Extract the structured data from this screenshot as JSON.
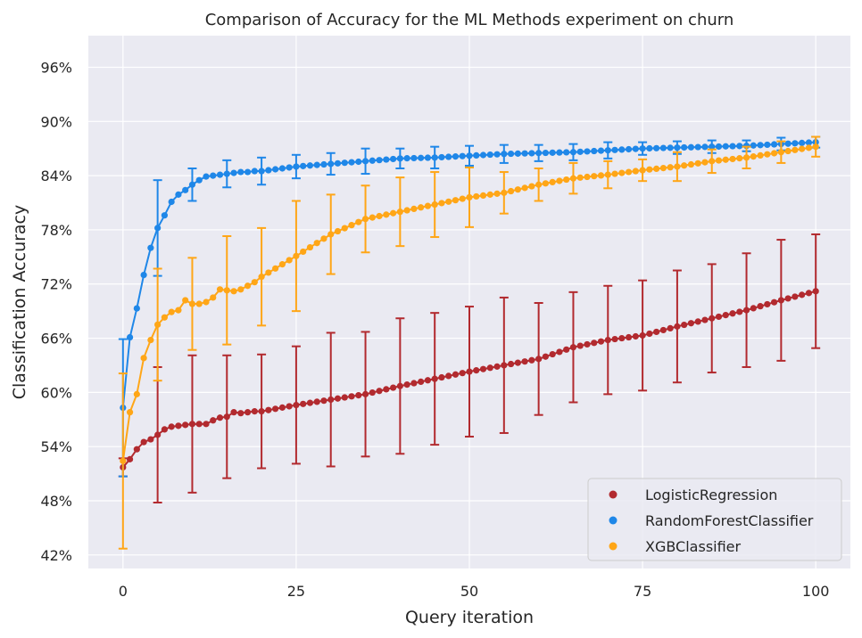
{
  "chart_data": {
    "type": "line",
    "title": "Comparison of Accuracy for the ML Methods experiment on churn",
    "xlabel": "Query iteration",
    "ylabel": "Classification Accuracy",
    "xlim": [
      -5,
      105
    ],
    "ylim": [
      40.5,
      99.5
    ],
    "xticks": [
      0,
      25,
      50,
      75,
      100
    ],
    "yticks": [
      42,
      48,
      54,
      60,
      66,
      72,
      78,
      84,
      90,
      96
    ],
    "ytick_suffix": "%",
    "grid": true,
    "legend_position": "lower right",
    "errorbar_every": 5,
    "background": "#eaeaf2",
    "series": [
      {
        "name": "LogisticRegression",
        "color": "#b22a2f",
        "anchors": [
          [
            0,
            51.7
          ],
          [
            1,
            52.6
          ],
          [
            2,
            53.7
          ],
          [
            3,
            54.5
          ],
          [
            4,
            54.8
          ],
          [
            5,
            55.3
          ],
          [
            6,
            55.9
          ],
          [
            7,
            56.2
          ],
          [
            8,
            56.3
          ],
          [
            9,
            56.4
          ],
          [
            10,
            56.5
          ],
          [
            11,
            56.5
          ],
          [
            12,
            56.5
          ],
          [
            13,
            56.9
          ],
          [
            14,
            57.2
          ],
          [
            15,
            57.3
          ],
          [
            16,
            57.8
          ],
          [
            17,
            57.7
          ],
          [
            18,
            57.8
          ],
          [
            19,
            57.9
          ],
          [
            20,
            57.9
          ],
          [
            25,
            58.6
          ],
          [
            30,
            59.2
          ],
          [
            35,
            59.8
          ],
          [
            40,
            60.7
          ],
          [
            45,
            61.5
          ],
          [
            50,
            62.3
          ],
          [
            55,
            63.0
          ],
          [
            60,
            63.7
          ],
          [
            65,
            65.0
          ],
          [
            70,
            65.8
          ],
          [
            75,
            66.3
          ],
          [
            80,
            67.3
          ],
          [
            85,
            68.2
          ],
          [
            90,
            69.1
          ],
          [
            95,
            70.2
          ],
          [
            100,
            71.2
          ]
        ],
        "errors": [
          [
            0,
            1.0
          ],
          [
            5,
            7.5
          ],
          [
            10,
            7.6
          ],
          [
            15,
            6.8
          ],
          [
            20,
            6.3
          ],
          [
            25,
            6.5
          ],
          [
            30,
            7.4
          ],
          [
            35,
            6.9
          ],
          [
            40,
            7.5
          ],
          [
            45,
            7.3
          ],
          [
            50,
            7.2
          ],
          [
            55,
            7.5
          ],
          [
            60,
            6.2
          ],
          [
            65,
            6.1
          ],
          [
            70,
            6.0
          ],
          [
            75,
            6.1
          ],
          [
            80,
            6.2
          ],
          [
            85,
            6.0
          ],
          [
            90,
            6.3
          ],
          [
            95,
            6.7
          ],
          [
            100,
            6.3
          ]
        ]
      },
      {
        "name": "RandomForestClassifier",
        "color": "#1f87e8",
        "anchors": [
          [
            0,
            58.3
          ],
          [
            1,
            66.1
          ],
          [
            2,
            69.3
          ],
          [
            3,
            73.0
          ],
          [
            4,
            76.0
          ],
          [
            5,
            78.2
          ],
          [
            6,
            79.6
          ],
          [
            7,
            81.1
          ],
          [
            8,
            81.9
          ],
          [
            9,
            82.4
          ],
          [
            10,
            83.0
          ],
          [
            11,
            83.5
          ],
          [
            12,
            83.9
          ],
          [
            13,
            84.0
          ],
          [
            14,
            84.1
          ],
          [
            15,
            84.2
          ],
          [
            16,
            84.3
          ],
          [
            17,
            84.4
          ],
          [
            18,
            84.4
          ],
          [
            19,
            84.5
          ],
          [
            20,
            84.5
          ],
          [
            25,
            85.0
          ],
          [
            30,
            85.3
          ],
          [
            35,
            85.6
          ],
          [
            40,
            85.9
          ],
          [
            45,
            86.0
          ],
          [
            50,
            86.2
          ],
          [
            55,
            86.4
          ],
          [
            60,
            86.5
          ],
          [
            65,
            86.6
          ],
          [
            70,
            86.8
          ],
          [
            75,
            87.0
          ],
          [
            80,
            87.1
          ],
          [
            85,
            87.2
          ],
          [
            90,
            87.3
          ],
          [
            95,
            87.5
          ],
          [
            100,
            87.7
          ]
        ],
        "errors": [
          [
            0,
            7.6
          ],
          [
            5,
            5.3
          ],
          [
            10,
            1.8
          ],
          [
            15,
            1.5
          ],
          [
            20,
            1.5
          ],
          [
            25,
            1.3
          ],
          [
            30,
            1.2
          ],
          [
            35,
            1.4
          ],
          [
            40,
            1.1
          ],
          [
            45,
            1.2
          ],
          [
            50,
            1.1
          ],
          [
            55,
            1.0
          ],
          [
            60,
            0.9
          ],
          [
            65,
            0.9
          ],
          [
            70,
            0.9
          ],
          [
            75,
            0.7
          ],
          [
            80,
            0.7
          ],
          [
            85,
            0.7
          ],
          [
            90,
            0.6
          ],
          [
            95,
            0.7
          ],
          [
            100,
            0.6
          ]
        ]
      },
      {
        "name": "XGBClassifier",
        "color": "#ffa617",
        "anchors": [
          [
            0,
            52.4
          ],
          [
            1,
            57.8
          ],
          [
            2,
            59.8
          ],
          [
            3,
            63.8
          ],
          [
            4,
            65.8
          ],
          [
            5,
            67.5
          ],
          [
            6,
            68.3
          ],
          [
            7,
            68.9
          ],
          [
            8,
            69.1
          ],
          [
            9,
            70.2
          ],
          [
            10,
            69.8
          ],
          [
            11,
            69.8
          ],
          [
            12,
            70.0
          ],
          [
            13,
            70.5
          ],
          [
            14,
            71.4
          ],
          [
            15,
            71.3
          ],
          [
            16,
            71.2
          ],
          [
            17,
            71.4
          ],
          [
            18,
            71.8
          ],
          [
            19,
            72.2
          ],
          [
            20,
            72.8
          ],
          [
            25,
            75.1
          ],
          [
            30,
            77.5
          ],
          [
            35,
            79.2
          ],
          [
            40,
            80.0
          ],
          [
            45,
            80.8
          ],
          [
            50,
            81.6
          ],
          [
            55,
            82.1
          ],
          [
            60,
            83.0
          ],
          [
            65,
            83.7
          ],
          [
            70,
            84.1
          ],
          [
            75,
            84.6
          ],
          [
            80,
            85.0
          ],
          [
            85,
            85.6
          ],
          [
            90,
            86.0
          ],
          [
            95,
            86.6
          ],
          [
            100,
            87.2
          ]
        ],
        "errors": [
          [
            0,
            9.7
          ],
          [
            5,
            6.2
          ],
          [
            10,
            5.1
          ],
          [
            15,
            6.0
          ],
          [
            20,
            5.4
          ],
          [
            25,
            6.1
          ],
          [
            30,
            4.4
          ],
          [
            35,
            3.7
          ],
          [
            40,
            3.8
          ],
          [
            45,
            3.6
          ],
          [
            50,
            3.3
          ],
          [
            55,
            2.3
          ],
          [
            60,
            1.8
          ],
          [
            65,
            1.7
          ],
          [
            70,
            1.5
          ],
          [
            75,
            1.2
          ],
          [
            80,
            1.6
          ],
          [
            85,
            1.3
          ],
          [
            90,
            1.2
          ],
          [
            95,
            1.2
          ],
          [
            100,
            1.1
          ]
        ]
      }
    ]
  }
}
